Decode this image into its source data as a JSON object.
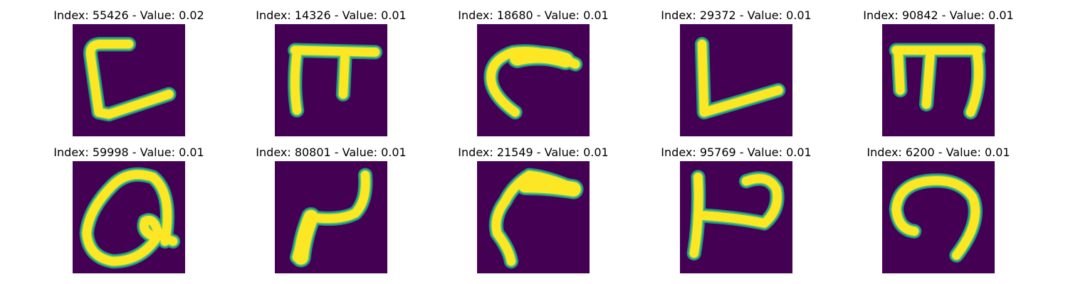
{
  "colors": {
    "background_cell": "#440154",
    "stroke_edge": "#21918c",
    "stroke_mid": "#5ec962",
    "stroke_core": "#fde725"
  },
  "panels": [
    {
      "title": "Index: 55426 - Value: 0.02"
    },
    {
      "title": "Index: 14326 - Value: 0.01"
    },
    {
      "title": "Index: 18680 - Value: 0.01"
    },
    {
      "title": "Index: 29372 - Value: 0.01"
    },
    {
      "title": "Index: 90842 - Value: 0.01"
    },
    {
      "title": "Index: 59998 - Value: 0.01"
    },
    {
      "title": "Index: 80801 - Value: 0.01"
    },
    {
      "title": "Index: 21549 - Value: 0.01"
    },
    {
      "title": "Index: 95769 - Value: 0.01"
    },
    {
      "title": "Index: 6200 - Value: 0.01"
    }
  ]
}
